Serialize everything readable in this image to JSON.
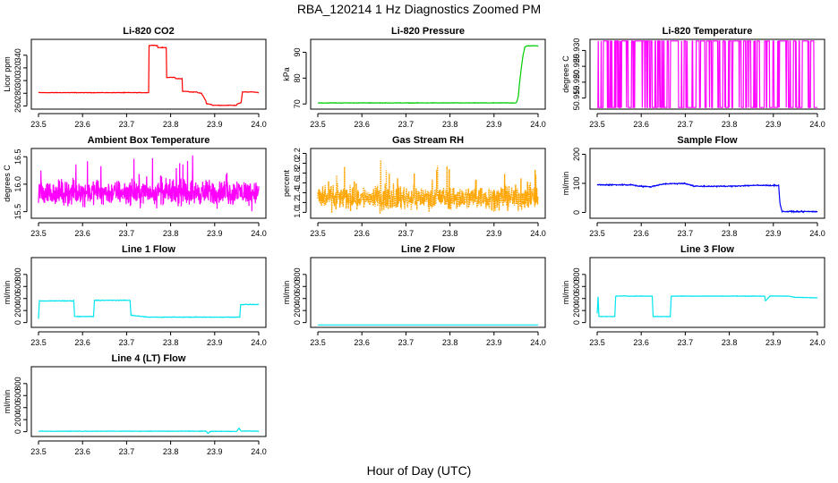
{
  "figure": {
    "title": "RBA_120214  1 Hz Diagnostics Zoomed PM",
    "xlabel": "Hour of Day (UTC)"
  },
  "chart_data": [
    {
      "type": "line",
      "title": "Li-820 CO2",
      "ylabel": "Licor ppm",
      "color": "#ff0000",
      "xlim": [
        23.5,
        24.0
      ],
      "ylim": [
        255,
        365
      ],
      "x_ticks": [
        "23.5",
        "23.6",
        "23.7",
        "23.8",
        "23.9",
        "24.0"
      ],
      "y_ticks": [
        260,
        280,
        300,
        320,
        340
      ],
      "series": [
        {
          "style": "steps",
          "noise": 0.6,
          "x": [
            23.5,
            23.75,
            23.751,
            23.76,
            23.77,
            23.77,
            23.79,
            23.79,
            23.81,
            23.81,
            23.826,
            23.826,
            23.84,
            23.84,
            23.86,
            23.86,
            23.87,
            23.88,
            23.88,
            23.894,
            23.894,
            23.95,
            23.95,
            23.96,
            23.963,
            23.97,
            23.99,
            24.0
          ],
          "y": [
            281,
            281,
            355,
            356,
            355,
            352,
            352,
            305,
            305,
            303,
            303,
            283,
            283,
            282,
            282,
            281,
            280,
            268,
            264,
            262,
            261,
            261,
            263,
            265,
            282,
            282,
            282,
            281
          ]
        }
      ]
    },
    {
      "type": "line",
      "title": "Li-820 Pressure",
      "ylabel": "kPa",
      "color": "#00cc00",
      "xlim": [
        23.5,
        24.0
      ],
      "ylim": [
        68,
        95
      ],
      "x_ticks": [
        "23.5",
        "23.6",
        "23.7",
        "23.8",
        "23.9",
        "24.0"
      ],
      "y_ticks": [
        70,
        80,
        90
      ],
      "series": [
        {
          "style": "steps",
          "noise": 0.15,
          "x": [
            23.5,
            23.95,
            23.952,
            23.955,
            23.958,
            23.962,
            23.966,
            23.97,
            23.975,
            24.0
          ],
          "y": [
            70.4,
            70.4,
            71,
            73,
            78,
            84,
            89,
            92,
            92.5,
            92.5
          ]
        }
      ]
    },
    {
      "type": "line",
      "title": "Li-820 Temperature",
      "ylabel": "degrees C",
      "color": "#ff00ff",
      "xlim": [
        23.5,
        24.0
      ],
      "ylim": [
        50.9115,
        50.9335
      ],
      "x_ticks": [
        "23.5",
        "23.6",
        "23.7",
        "23.8",
        "23.9",
        "24.0"
      ],
      "y_ticks": [
        "50.915",
        "50.920",
        "50.925",
        "50.930"
      ],
      "series": [
        {
          "style": "toggle",
          "low": 50.912,
          "high": 50.933,
          "density": 0.55
        }
      ]
    },
    {
      "type": "line",
      "title": "Ambient Box Temperature",
      "ylabel": "degrees C",
      "color": "#ff00ff",
      "xlim": [
        23.5,
        24.0
      ],
      "ylim": [
        15.38,
        16.65
      ],
      "x_ticks": [
        "23.5",
        "23.6",
        "23.7",
        "23.8",
        "23.9",
        "24.0"
      ],
      "y_ticks": [
        "15.5",
        "16.0",
        "16.5"
      ],
      "series": [
        {
          "style": "noise",
          "mean": 15.85,
          "amplitude": 0.32,
          "min": 15.45,
          "max": 16.6
        }
      ]
    },
    {
      "type": "line",
      "title": "Gas Stream RH",
      "ylabel": "percent",
      "color": "#ffa500",
      "xlim": [
        23.5,
        24.0
      ],
      "ylim": [
        0.88,
        2.3
      ],
      "x_ticks": [
        "23.5",
        "23.6",
        "23.7",
        "23.8",
        "23.9",
        "24.0"
      ],
      "y_ticks": [
        "1.0",
        "1.2",
        "1.4",
        "1.6",
        "1.8",
        "2.0",
        "2.2"
      ],
      "series": [
        {
          "style": "noise-dotted",
          "mean": 1.3,
          "amplitude": 0.35,
          "min": 0.95,
          "max": 2.25
        }
      ]
    },
    {
      "type": "line",
      "title": "Sample Flow",
      "ylabel": "ml/min",
      "color": "#0000ff",
      "xlim": [
        23.5,
        24.0
      ],
      "ylim": [
        -20,
        220
      ],
      "x_ticks": [
        "23.5",
        "23.6",
        "23.7",
        "23.8",
        "23.9",
        "24.0"
      ],
      "y_ticks": [
        0,
        100,
        200
      ],
      "series": [
        {
          "style": "steps",
          "noise": 3,
          "x": [
            23.5,
            23.58,
            23.59,
            23.6,
            23.62,
            23.65,
            23.7,
            23.72,
            23.8,
            23.85,
            23.912,
            23.915,
            23.92,
            24.0
          ],
          "y": [
            95,
            95,
            92,
            90,
            88,
            98,
            100,
            90,
            90,
            93,
            93,
            30,
            3,
            3
          ]
        }
      ]
    },
    {
      "type": "line",
      "title": "Line 1 Flow",
      "ylabel": "ml/min",
      "color": "#00e5ee",
      "xlim": [
        23.5,
        24.0
      ],
      "ylim": [
        -80,
        1080
      ],
      "x_ticks": [
        "23.5",
        "23.6",
        "23.7",
        "23.8",
        "23.9",
        "24.0"
      ],
      "y_ticks": [
        0,
        200,
        400,
        600,
        800
      ],
      "series": [
        {
          "style": "steps",
          "noise": 8,
          "x": [
            23.5,
            23.502,
            23.58,
            23.582,
            23.625,
            23.627,
            23.708,
            23.71,
            23.75,
            23.957,
            23.959,
            24.0
          ],
          "y": [
            60,
            360,
            360,
            100,
            100,
            370,
            370,
            120,
            90,
            90,
            300,
            300
          ]
        }
      ]
    },
    {
      "type": "line",
      "title": "Line 2 Flow",
      "ylabel": "ml/min",
      "color": "#00e5ee",
      "xlim": [
        23.5,
        24.0
      ],
      "ylim": [
        -80,
        1080
      ],
      "x_ticks": [
        "23.5",
        "23.6",
        "23.7",
        "23.8",
        "23.9",
        "24.0"
      ],
      "y_ticks": [
        0,
        200,
        400,
        600,
        800
      ],
      "series": [
        {
          "style": "steps",
          "noise": 0,
          "x": [
            23.5,
            24.0
          ],
          "y": [
            -40,
            -40
          ]
        }
      ]
    },
    {
      "type": "line",
      "title": "Line 3 Flow",
      "ylabel": "ml/min",
      "color": "#00e5ee",
      "xlim": [
        23.5,
        24.0
      ],
      "ylim": [
        -80,
        1080
      ],
      "x_ticks": [
        "23.5",
        "23.6",
        "23.7",
        "23.8",
        "23.9",
        "24.0"
      ],
      "y_ticks": [
        0,
        200,
        400,
        600,
        800
      ],
      "series": [
        {
          "style": "steps",
          "noise": 6,
          "x": [
            23.5,
            23.502,
            23.504,
            23.54,
            23.542,
            23.625,
            23.627,
            23.666,
            23.668,
            23.88,
            23.882,
            23.89,
            23.892,
            23.935,
            23.95,
            24.0
          ],
          "y": [
            150,
            430,
            100,
            100,
            440,
            440,
            100,
            100,
            440,
            440,
            360,
            420,
            440,
            440,
            420,
            410
          ]
        }
      ]
    },
    {
      "type": "line",
      "title": "Line 4 (LT) Flow",
      "ylabel": "ml/min",
      "color": "#00e5ee",
      "xlim": [
        23.5,
        24.0
      ],
      "ylim": [
        -80,
        1080
      ],
      "x_ticks": [
        "23.5",
        "23.6",
        "23.7",
        "23.8",
        "23.9",
        "24.0"
      ],
      "y_ticks": [
        0,
        200,
        400,
        600,
        800
      ],
      "series": [
        {
          "style": "steps",
          "noise": 6,
          "x": [
            23.5,
            23.88,
            23.885,
            23.89,
            23.95,
            23.955,
            23.96,
            24.0
          ],
          "y": [
            8,
            8,
            -30,
            5,
            5,
            60,
            10,
            10
          ]
        }
      ]
    }
  ]
}
